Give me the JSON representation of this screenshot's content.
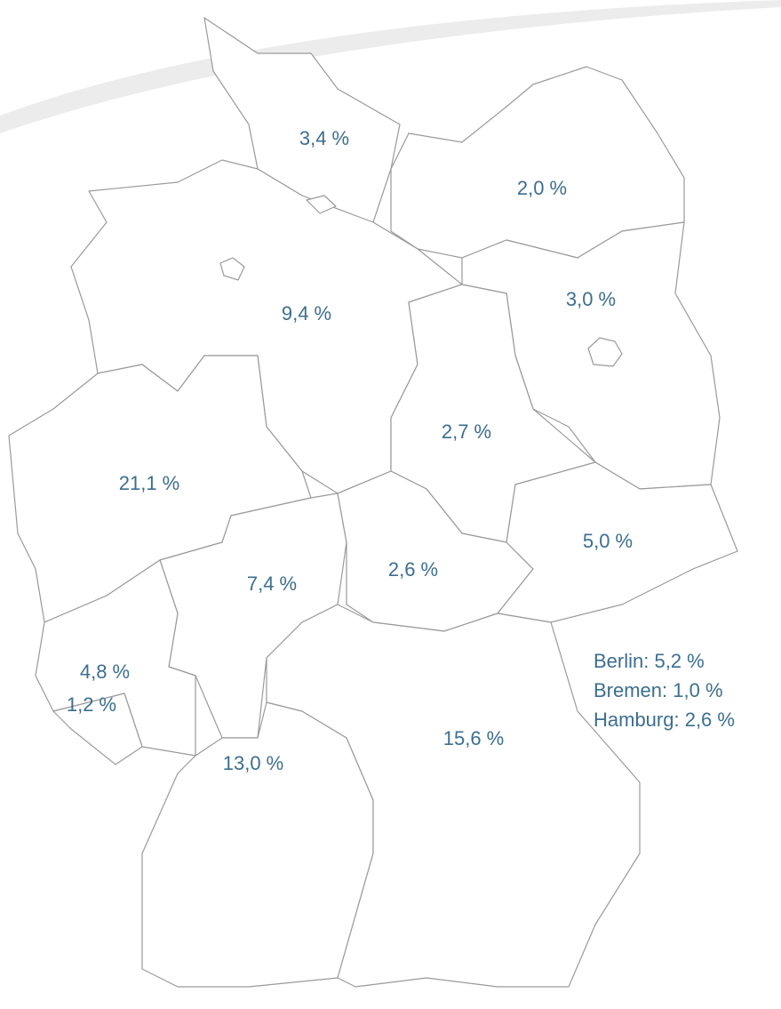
{
  "regions": [
    {
      "label": "3,4 %"
    },
    {
      "label": "2,0 %"
    },
    {
      "label": "9,4 %"
    },
    {
      "label": "3,0 %"
    },
    {
      "label": "2,7 %"
    },
    {
      "label": "21,1 %"
    },
    {
      "label": "5,0 %"
    },
    {
      "label": "7,4 %"
    },
    {
      "label": "2,6 %"
    },
    {
      "label": "4,8 %"
    },
    {
      "label": "1,2 %"
    },
    {
      "label": "15,6 %"
    },
    {
      "label": "13,0 %"
    }
  ],
  "city_states": [
    "Berlin: 5,2 %",
    "Bremen: 1,0 %",
    "Hamburg: 2,6 %"
  ]
}
